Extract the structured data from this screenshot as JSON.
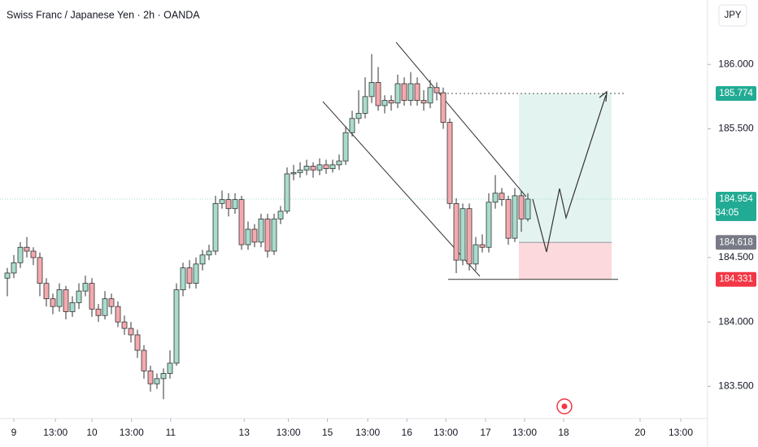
{
  "chart_data": {
    "type": "candlestick",
    "title": "Swiss Franc / Japanese Yen · 2h · OANDA",
    "currency": "JPY",
    "countdown": "34:05",
    "up_color": "#a8dccd",
    "down_color": "#f4a9ae",
    "ylim": [
      183.25,
      186.5
    ],
    "xlim": [
      -1.125,
      107.625
    ],
    "yticks": [
      {
        "value": 183.5,
        "label": "183.500"
      },
      {
        "value": 184.0,
        "label": "184.000"
      },
      {
        "value": 184.5,
        "label": "184.500"
      },
      {
        "value": 185.5,
        "label": "185.500"
      },
      {
        "value": 186.0,
        "label": "186.000"
      }
    ],
    "xticks": [
      {
        "value": 1,
        "label": "9"
      },
      {
        "value": 7.4,
        "label": "13:00"
      },
      {
        "value": 13,
        "label": "10"
      },
      {
        "value": 19.1,
        "label": "13:00"
      },
      {
        "value": 25.1,
        "label": "11"
      },
      {
        "value": 36.4,
        "label": "13"
      },
      {
        "value": 43.2,
        "label": "13:00"
      },
      {
        "value": 49.2,
        "label": "15"
      },
      {
        "value": 55.4,
        "label": "13:00"
      },
      {
        "value": 61.4,
        "label": "16"
      },
      {
        "value": 67.4,
        "label": "13:00"
      },
      {
        "value": 73.5,
        "label": "17"
      },
      {
        "value": 79.5,
        "label": "13:00"
      },
      {
        "value": 85.5,
        "label": "18"
      },
      {
        "value": 97.25,
        "label": "20"
      },
      {
        "value": 103.5,
        "label": "13:00"
      }
    ],
    "ohlc": [
      [
        184.34,
        184.42,
        184.2,
        184.38
      ],
      [
        184.38,
        184.52,
        184.34,
        184.46
      ],
      [
        184.46,
        184.62,
        184.42,
        184.58
      ],
      [
        184.58,
        184.66,
        184.5,
        184.55
      ],
      [
        184.55,
        184.58,
        184.44,
        184.5
      ],
      [
        184.5,
        184.54,
        184.2,
        184.3
      ],
      [
        184.3,
        184.34,
        184.12,
        184.18
      ],
      [
        184.18,
        184.22,
        184.06,
        184.12
      ],
      [
        184.12,
        184.3,
        184.08,
        184.25
      ],
      [
        184.25,
        184.28,
        184.02,
        184.08
      ],
      [
        184.08,
        184.2,
        184.04,
        184.15
      ],
      [
        184.15,
        184.3,
        184.1,
        184.24
      ],
      [
        184.24,
        184.36,
        184.2,
        184.3
      ],
      [
        184.3,
        184.34,
        184.04,
        184.1
      ],
      [
        184.1,
        184.14,
        184.0,
        184.05
      ],
      [
        184.05,
        184.24,
        184.02,
        184.18
      ],
      [
        184.18,
        184.22,
        184.06,
        184.12
      ],
      [
        184.12,
        184.16,
        183.96,
        184.0
      ],
      [
        184.0,
        184.05,
        183.9,
        183.95
      ],
      [
        183.95,
        184.0,
        183.84,
        183.9
      ],
      [
        183.9,
        183.94,
        183.72,
        183.78
      ],
      [
        183.78,
        183.82,
        183.56,
        183.62
      ],
      [
        183.62,
        183.66,
        183.46,
        183.52
      ],
      [
        183.52,
        183.6,
        183.48,
        183.56
      ],
      [
        183.56,
        183.64,
        183.4,
        183.6
      ],
      [
        183.6,
        183.78,
        183.56,
        183.68
      ],
      [
        183.68,
        184.3,
        183.66,
        184.25
      ],
      [
        184.25,
        184.46,
        184.2,
        184.42
      ],
      [
        184.42,
        184.48,
        184.26,
        184.3
      ],
      [
        184.3,
        184.5,
        184.26,
        184.45
      ],
      [
        184.45,
        184.56,
        184.4,
        184.52
      ],
      [
        184.52,
        184.6,
        184.48,
        184.55
      ],
      [
        184.55,
        184.98,
        184.52,
        184.92
      ],
      [
        184.92,
        185.02,
        184.88,
        184.95
      ],
      [
        184.95,
        185.0,
        184.82,
        184.88
      ],
      [
        184.88,
        185.0,
        184.84,
        184.95
      ],
      [
        184.95,
        184.98,
        184.56,
        184.6
      ],
      [
        184.6,
        184.78,
        184.56,
        184.72
      ],
      [
        184.72,
        184.76,
        184.58,
        184.62
      ],
      [
        184.62,
        184.84,
        184.58,
        184.8
      ],
      [
        184.8,
        184.84,
        184.5,
        184.55
      ],
      [
        184.55,
        184.84,
        184.52,
        184.8
      ],
      [
        184.8,
        184.9,
        184.76,
        184.86
      ],
      [
        184.86,
        185.2,
        184.84,
        185.15
      ],
      [
        185.15,
        185.22,
        185.1,
        185.16
      ],
      [
        185.16,
        185.24,
        185.12,
        185.18
      ],
      [
        185.18,
        185.26,
        185.14,
        185.21
      ],
      [
        185.21,
        185.24,
        185.12,
        185.18
      ],
      [
        185.18,
        185.27,
        185.14,
        185.22
      ],
      [
        185.22,
        185.26,
        185.15,
        185.19
      ],
      [
        185.19,
        185.26,
        185.16,
        185.22
      ],
      [
        185.22,
        185.3,
        185.18,
        185.25
      ],
      [
        185.25,
        185.52,
        185.22,
        185.47
      ],
      [
        185.47,
        185.64,
        185.44,
        185.58
      ],
      [
        185.58,
        185.8,
        185.54,
        185.62
      ],
      [
        185.62,
        185.9,
        185.58,
        185.75
      ],
      [
        185.75,
        186.08,
        185.7,
        185.86
      ],
      [
        185.86,
        185.98,
        185.64,
        185.68
      ],
      [
        185.68,
        185.76,
        185.62,
        185.72
      ],
      [
        185.72,
        185.76,
        185.64,
        185.7
      ],
      [
        185.7,
        185.92,
        185.66,
        185.85
      ],
      [
        185.85,
        185.9,
        185.68,
        185.72
      ],
      [
        185.72,
        185.94,
        185.68,
        185.85
      ],
      [
        185.85,
        185.9,
        185.68,
        185.72
      ],
      [
        185.72,
        185.8,
        185.64,
        185.7
      ],
      [
        185.7,
        185.88,
        185.66,
        185.82
      ],
      [
        185.82,
        185.86,
        185.72,
        185.78
      ],
      [
        185.78,
        185.82,
        185.5,
        185.55
      ],
      [
        185.55,
        185.58,
        184.88,
        184.92
      ],
      [
        184.92,
        184.96,
        184.38,
        184.48
      ],
      [
        184.48,
        184.92,
        184.44,
        184.88
      ],
      [
        184.88,
        184.92,
        184.4,
        184.45
      ],
      [
        184.45,
        184.66,
        184.4,
        184.6
      ],
      [
        184.6,
        184.68,
        184.54,
        184.58
      ],
      [
        184.58,
        185.0,
        184.54,
        184.93
      ],
      [
        184.93,
        185.14,
        184.88,
        185.0
      ],
      [
        185.0,
        185.04,
        184.9,
        184.95
      ],
      [
        184.95,
        184.98,
        184.6,
        184.65
      ],
      [
        184.65,
        185.04,
        184.62,
        184.98
      ],
      [
        184.98,
        185.02,
        184.7,
        184.8
      ],
      [
        184.8,
        185.0,
        184.78,
        184.954
      ]
    ],
    "target_price": 185.774,
    "current_price": 184.954,
    "entry_price": 184.618,
    "stop_price": 184.331
  }
}
